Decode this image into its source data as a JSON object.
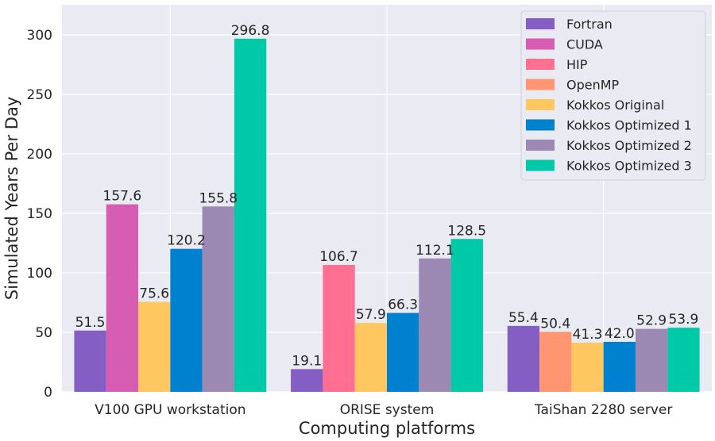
{
  "chart_data": {
    "type": "bar",
    "title": "",
    "xlabel": "Computing platforms",
    "ylabel": "Simulated Years Per Day",
    "ylim": [
      0,
      325
    ],
    "yticks": [
      0,
      50,
      100,
      150,
      200,
      250,
      300
    ],
    "grid": true,
    "legend_position": "top-right",
    "categories": [
      "V100 GPU workstation",
      "ORISE system",
      "TaiShan 2280 server"
    ],
    "series": [
      {
        "name": "Fortran",
        "color": "#845ec2",
        "values": [
          51.5,
          19.1,
          55.4
        ]
      },
      {
        "name": "CUDA",
        "color": "#d65db1",
        "values": [
          157.6,
          null,
          null
        ]
      },
      {
        "name": "HIP",
        "color": "#ff6f91",
        "values": [
          null,
          106.7,
          null
        ]
      },
      {
        "name": "OpenMP",
        "color": "#ff9671",
        "values": [
          null,
          null,
          50.4
        ]
      },
      {
        "name": "Kokkos Original",
        "color": "#ffc75f",
        "values": [
          75.6,
          57.9,
          41.3
        ]
      },
      {
        "name": "Kokkos Optimized 1",
        "color": "#0081cf",
        "values": [
          120.2,
          66.3,
          42.0
        ]
      },
      {
        "name": "Kokkos Optimized 2",
        "color": "#9b89b3",
        "values": [
          155.8,
          112.1,
          52.9
        ]
      },
      {
        "name": "Kokkos Optimized 3",
        "color": "#00c9a7",
        "values": [
          296.8,
          128.5,
          53.9
        ]
      }
    ],
    "group_order": [
      [
        "Fortran",
        "CUDA",
        "Kokkos Original",
        "Kokkos Optimized 1",
        "Kokkos Optimized 2",
        "Kokkos Optimized 3"
      ],
      [
        "Fortran",
        "HIP",
        "Kokkos Original",
        "Kokkos Optimized 1",
        "Kokkos Optimized 2",
        "Kokkos Optimized 3"
      ],
      [
        "Fortran",
        "OpenMP",
        "Kokkos Original",
        "Kokkos Optimized 1",
        "Kokkos Optimized 2",
        "Kokkos Optimized 3"
      ]
    ]
  },
  "colors": {
    "plot_background": "#eaeaf2",
    "grid": "#ffffff",
    "text": "#262626"
  }
}
